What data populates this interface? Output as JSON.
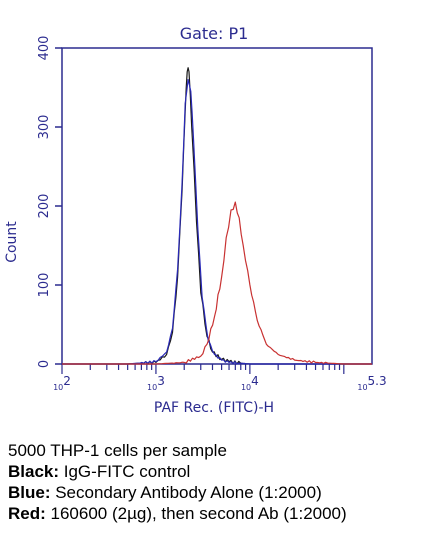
{
  "chart_data": {
    "type": "line",
    "title": "Gate: P1",
    "xlabel": "PAF Rec. (FITC)-H",
    "ylabel": "Count",
    "x_scale": "log",
    "xlim": [
      100,
      199526
    ],
    "ylim": [
      0,
      400
    ],
    "y_ticks": [
      0,
      100,
      200,
      300,
      400
    ],
    "x_ticks": [
      {
        "base": "10",
        "exp": "2",
        "value": 100
      },
      {
        "base": "10",
        "exp": "3",
        "value": 1000
      },
      {
        "base": "10",
        "exp": "4",
        "value": 10000
      },
      {
        "base": "10",
        "exp": "5.3",
        "value": 199526
      }
    ],
    "colors": {
      "axis": "#2b2b8f",
      "black": "#1a1a1a",
      "blue": "#2a2ab8",
      "red": "#c83232"
    },
    "series": [
      {
        "color": "black",
        "points": [
          [
            100,
            0
          ],
          [
            500,
            0
          ],
          [
            1000,
            2
          ],
          [
            1300,
            12
          ],
          [
            1500,
            40
          ],
          [
            1700,
            110
          ],
          [
            1900,
            220
          ],
          [
            2050,
            320
          ],
          [
            2150,
            370
          ],
          [
            2250,
            370
          ],
          [
            2400,
            300
          ],
          [
            2700,
            180
          ],
          [
            3000,
            90
          ],
          [
            3500,
            35
          ],
          [
            4000,
            15
          ],
          [
            5000,
            6
          ],
          [
            6000,
            3
          ],
          [
            8000,
            1
          ],
          [
            10000,
            0
          ],
          [
            199526,
            0
          ]
        ]
      },
      {
        "color": "blue",
        "points": [
          [
            100,
            0
          ],
          [
            500,
            0
          ],
          [
            1000,
            3
          ],
          [
            1300,
            15
          ],
          [
            1500,
            45
          ],
          [
            1700,
            120
          ],
          [
            1900,
            230
          ],
          [
            2050,
            330
          ],
          [
            2200,
            360
          ],
          [
            2350,
            345
          ],
          [
            2500,
            290
          ],
          [
            2800,
            170
          ],
          [
            3100,
            85
          ],
          [
            3600,
            30
          ],
          [
            4200,
            12
          ],
          [
            5000,
            5
          ],
          [
            6000,
            2
          ],
          [
            8000,
            1
          ],
          [
            10000,
            0
          ],
          [
            199526,
            0
          ]
        ]
      },
      {
        "color": "red",
        "points": [
          [
            100,
            0
          ],
          [
            1000,
            0
          ],
          [
            2000,
            2
          ],
          [
            3000,
            10
          ],
          [
            3500,
            25
          ],
          [
            4200,
            60
          ],
          [
            5000,
            110
          ],
          [
            5600,
            160
          ],
          [
            6300,
            195
          ],
          [
            7000,
            205
          ],
          [
            7700,
            185
          ],
          [
            8500,
            150
          ],
          [
            10000,
            100
          ],
          [
            12000,
            55
          ],
          [
            15000,
            25
          ],
          [
            20000,
            12
          ],
          [
            30000,
            5
          ],
          [
            50000,
            2
          ],
          [
            100000,
            0
          ],
          [
            199526,
            0
          ]
        ]
      }
    ]
  },
  "caption": {
    "line1": "5000 THP-1 cells per sample",
    "black_key": "Black:",
    "black_text": " IgG-FITC control",
    "blue_key": "Blue:",
    "blue_text": " Secondary Antibody Alone (1:2000)",
    "red_key": "Red:",
    "red_text": " 160600 (2µg), then second Ab (1:2000)"
  }
}
